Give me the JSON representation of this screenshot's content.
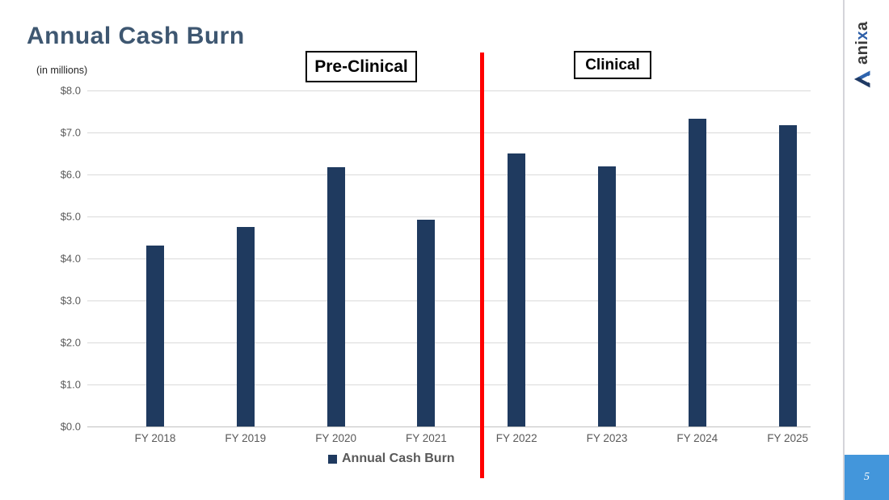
{
  "slide": {
    "title": "Annual Cash Burn",
    "page_number": "5",
    "logo": {
      "text": "anixa",
      "accent_letter": "x"
    }
  },
  "chart_data": {
    "type": "bar",
    "title": "Annual Cash Burn",
    "ylabel": "(in millions)",
    "categories": [
      "FY 2018",
      "FY 2019",
      "FY 2020",
      "FY 2021",
      "FY 2022",
      "FY 2023",
      "FY 2024",
      "FY 2025"
    ],
    "values": [
      4.3,
      4.75,
      6.17,
      4.93,
      6.5,
      6.2,
      7.33,
      7.17
    ],
    "ylim": [
      0,
      8
    ],
    "ytick_step": 1,
    "yticks": [
      "$8.0",
      "$7.0",
      "$6.0",
      "$5.0",
      "$4.0",
      "$3.0",
      "$2.0",
      "$1.0",
      "$0.0"
    ],
    "grid": true,
    "legend_position": "bottom",
    "legend": [
      {
        "label": "Annual Cash Burn",
        "color": "#1f3a5f"
      }
    ],
    "bar_color": "#1f3a5f",
    "divider_color": "#ff0000",
    "annotations": [
      {
        "text": "Pre-Clinical",
        "side": "left"
      },
      {
        "text": "Clinical",
        "side": "right"
      }
    ]
  },
  "colors": {
    "title": "#3e5771",
    "axis_text": "#595959",
    "page_badge": "#4396db",
    "logo_accent": "#2e5fa8"
  }
}
